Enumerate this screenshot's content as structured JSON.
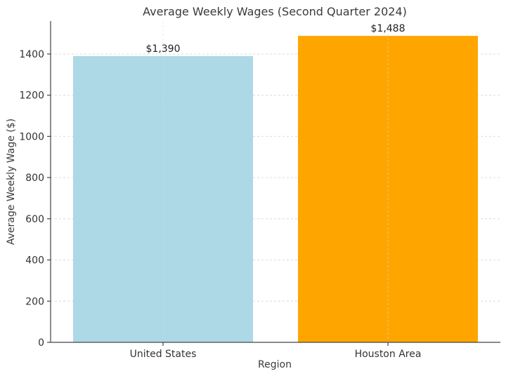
{
  "chart_data": {
    "type": "bar",
    "title": "Average Weekly Wages (Second Quarter 2024)",
    "xlabel": "Region",
    "ylabel": "Average Weekly Wage ($)",
    "categories": [
      "United States",
      "Houston Area"
    ],
    "values": [
      1390,
      1488
    ],
    "data_labels": [
      "$1,390",
      "$1,488"
    ],
    "colors": [
      "#add8e6",
      "#ffa500"
    ],
    "ylim": [
      0,
      1560
    ],
    "yticks": [
      0,
      200,
      400,
      600,
      800,
      1000,
      1200,
      1400
    ],
    "grid": true,
    "legend": "none"
  }
}
